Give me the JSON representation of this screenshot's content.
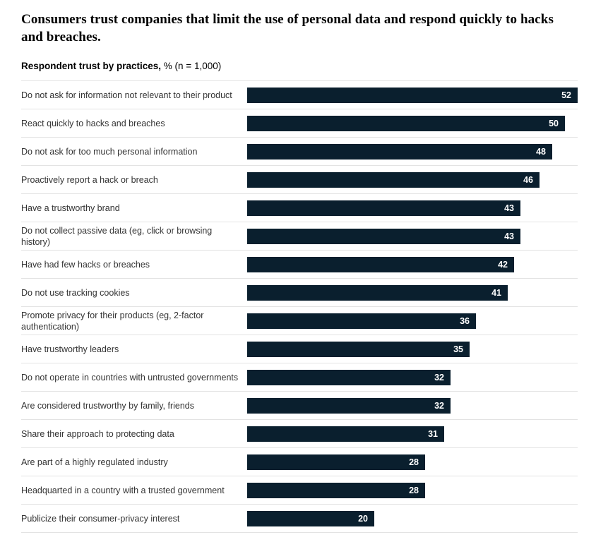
{
  "header": {
    "title": "Consumers trust companies that limit the use of personal data and respond quickly to hacks and breaches.",
    "subtitle_bold": "Respondent trust by practices,",
    "subtitle_rest": " % (n = 1,000)"
  },
  "colors": {
    "bar": "#0a1f2e",
    "divider": "#e3e3e3",
    "value_label": "#ffffff",
    "category_label": "#333333"
  },
  "chart_data": {
    "type": "bar",
    "orientation": "horizontal",
    "title": "Consumers trust companies that limit the use of personal data and respond quickly to hacks and breaches.",
    "subtitle": "Respondent trust by practices, % (n = 1,000)",
    "categories": [
      "Do not ask for information not relevant to their product",
      "React quickly to hacks and breaches",
      "Do not ask for too much personal information",
      "Proactively report a hack or breach",
      "Have a trustworthy brand",
      "Do not collect passive data (eg, click or browsing history)",
      "Have had few hacks or breaches",
      "Do not use tracking cookies",
      "Promote privacy for their products (eg, 2-factor authentication)",
      "Have trustworthy leaders",
      "Do not operate in countries with untrusted governments",
      "Are considered trustworthy by family, friends",
      "Share their approach to protecting data",
      "Are part of a highly regulated industry",
      "Headquarted in a country with a trusted government",
      "Publicize their consumer-privacy interest"
    ],
    "values": [
      52,
      50,
      48,
      46,
      43,
      43,
      42,
      41,
      36,
      35,
      32,
      32,
      31,
      28,
      28,
      20
    ],
    "xlabel": "",
    "ylabel": "",
    "xlim": [
      0,
      52
    ],
    "grid": false,
    "legend": false,
    "value_labels_position": "inside-end"
  }
}
